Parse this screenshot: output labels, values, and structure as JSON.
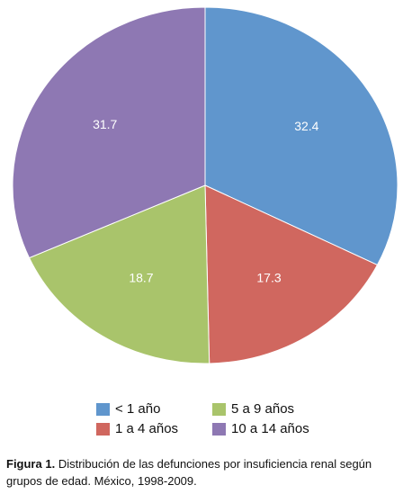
{
  "chart_data": {
    "type": "pie",
    "categories": [
      "< 1 año",
      "1 a 4 años",
      "5 a 9 años",
      "10 a 14 años"
    ],
    "values": [
      32.4,
      17.3,
      18.7,
      31.7
    ],
    "colors": [
      "#6096cd",
      "#d0675f",
      "#a9c46b",
      "#8e78b3"
    ]
  },
  "caption": {
    "label": "Figura 1.",
    "text": "Distribución de las defunciones por insuficiencia renal según grupos de edad. México, 1998-2009."
  }
}
